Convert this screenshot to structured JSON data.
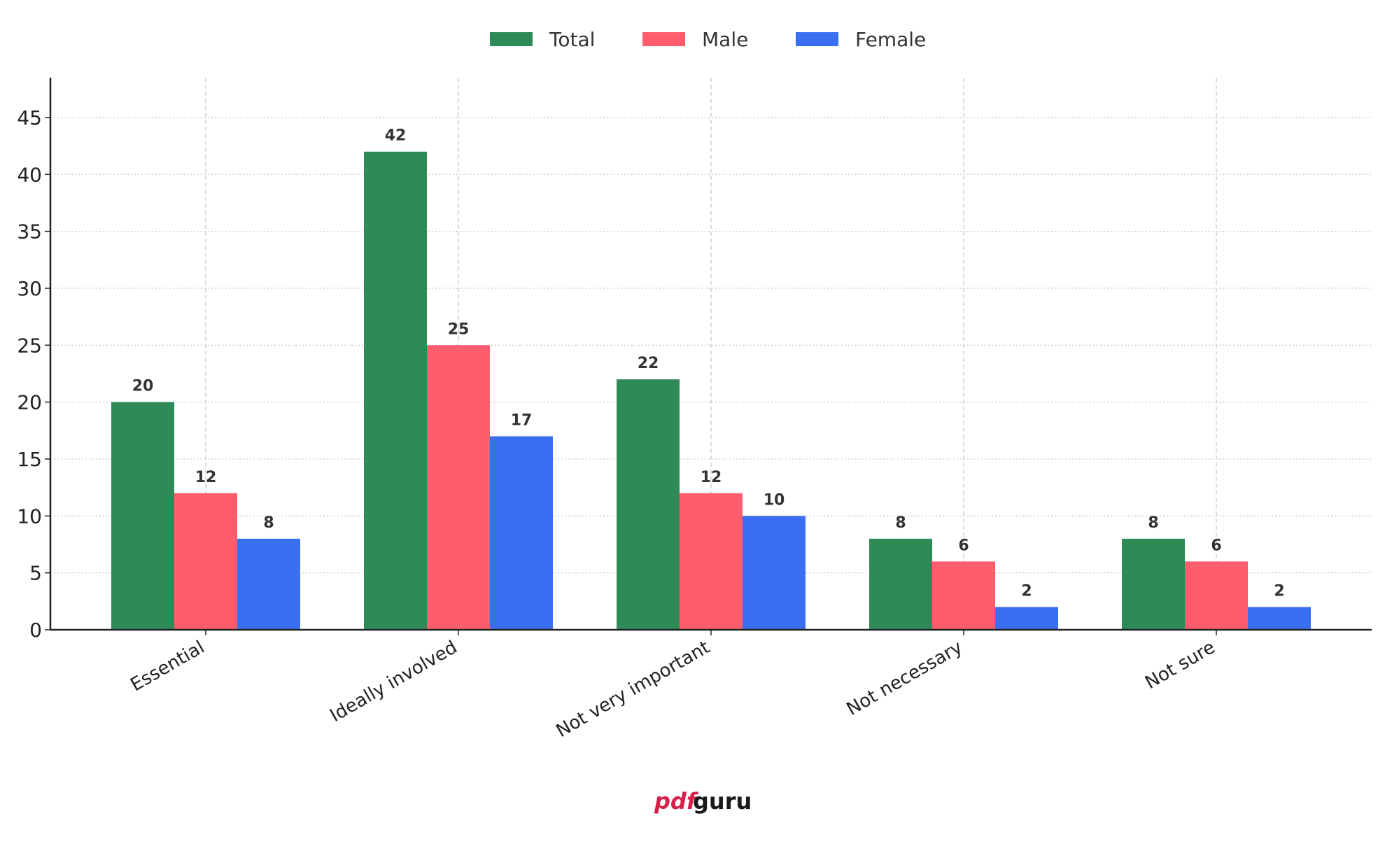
{
  "chart_data": {
    "type": "bar",
    "categories": [
      "Essential",
      "Ideally involved",
      "Not very important",
      "Not necessary",
      "Not sure"
    ],
    "series": [
      {
        "name": "Total",
        "color": "#2e8b57",
        "values": [
          20,
          42,
          22,
          8,
          8
        ]
      },
      {
        "name": "Male",
        "color": "#ff5c6e",
        "values": [
          12,
          25,
          12,
          6,
          6
        ]
      },
      {
        "name": "Female",
        "color": "#3b6ff2",
        "values": [
          8,
          17,
          10,
          2,
          2
        ]
      }
    ],
    "ylim": [
      0,
      48.5
    ],
    "yticks": [
      0,
      5,
      10,
      15,
      20,
      25,
      30,
      35,
      40,
      45
    ],
    "grid": true,
    "legend_placement": "top-center",
    "data_labels": true
  },
  "watermark": {
    "part1": "pdf",
    "part2": "guru",
    "color1": "#d6204a",
    "color2": "#1a1a1a"
  }
}
